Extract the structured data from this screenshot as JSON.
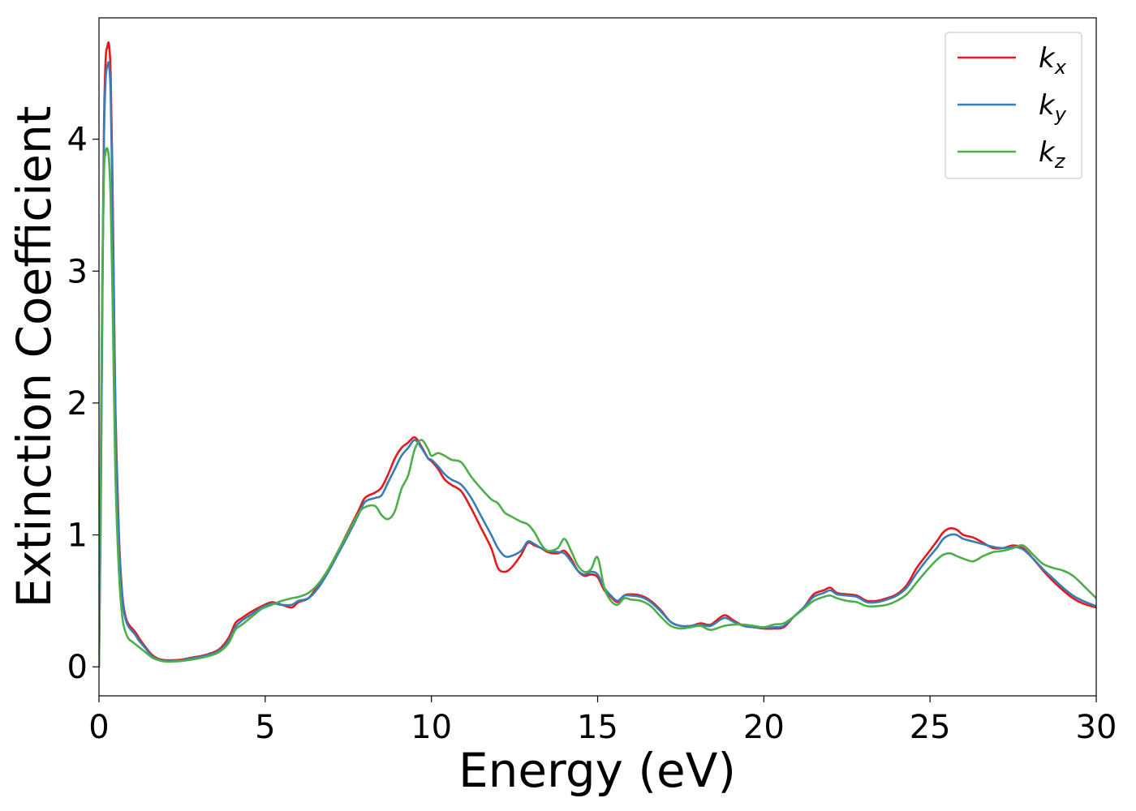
{
  "chart_data": {
    "type": "line",
    "title": "",
    "xlabel": "Energy (eV)",
    "ylabel": "Extinction Coefficient",
    "xlim": [
      0,
      30
    ],
    "ylim": [
      -0.22,
      4.92
    ],
    "xticks": [
      0,
      5,
      10,
      15,
      20,
      25,
      30
    ],
    "yticks": [
      0,
      1,
      2,
      3,
      4
    ],
    "grid": false,
    "legend_position": "top-right",
    "series": [
      {
        "name": "k",
        "subscript": "x",
        "color": "#e41a1c",
        "x": [
          0,
          0.05,
          0.1,
          0.15,
          0.2,
          0.25,
          0.3,
          0.35,
          0.4,
          0.45,
          0.5,
          0.6,
          0.7,
          0.8,
          0.9,
          1.0,
          1.1,
          1.2,
          1.4,
          1.6,
          1.8,
          2.0,
          2.2,
          2.5,
          2.8,
          3.2,
          3.6,
          3.9,
          4.1,
          4.3,
          4.6,
          4.9,
          5.2,
          5.5,
          5.8,
          6.0,
          6.3,
          6.6,
          6.9,
          7.2,
          7.5,
          7.8,
          8.0,
          8.3,
          8.5,
          8.7,
          8.9,
          9.1,
          9.3,
          9.5,
          9.7,
          9.9,
          10.0,
          10.2,
          10.4,
          10.6,
          10.9,
          11.2,
          11.5,
          11.8,
          12.0,
          12.2,
          12.4,
          12.7,
          12.9,
          13.1,
          13.3,
          13.5,
          13.8,
          14.0,
          14.2,
          14.4,
          14.6,
          14.8,
          15.0,
          15.2,
          15.4,
          15.6,
          15.8,
          16.0,
          16.3,
          16.6,
          16.9,
          17.2,
          17.5,
          17.8,
          18.1,
          18.4,
          18.8,
          19.1,
          19.4,
          19.7,
          20.0,
          20.3,
          20.6,
          20.9,
          21.2,
          21.5,
          21.8,
          22.0,
          22.2,
          22.5,
          22.8,
          23.1,
          23.4,
          23.7,
          24.0,
          24.3,
          24.6,
          24.9,
          25.2,
          25.4,
          25.6,
          25.8,
          26.0,
          26.3,
          26.6,
          26.9,
          27.2,
          27.5,
          27.8,
          28.1,
          28.4,
          28.7,
          29.0,
          29.3,
          29.6,
          30.0
        ],
        "y": [
          0.0,
          1.2,
          2.8,
          4.1,
          4.6,
          4.7,
          4.72,
          4.5,
          3.8,
          2.8,
          1.9,
          1.0,
          0.55,
          0.38,
          0.32,
          0.29,
          0.26,
          0.22,
          0.15,
          0.09,
          0.06,
          0.05,
          0.05,
          0.055,
          0.07,
          0.09,
          0.13,
          0.22,
          0.33,
          0.37,
          0.42,
          0.46,
          0.49,
          0.47,
          0.45,
          0.49,
          0.52,
          0.62,
          0.74,
          0.88,
          1.03,
          1.18,
          1.28,
          1.32,
          1.36,
          1.46,
          1.58,
          1.66,
          1.7,
          1.74,
          1.67,
          1.58,
          1.56,
          1.5,
          1.42,
          1.38,
          1.33,
          1.2,
          1.05,
          0.9,
          0.75,
          0.72,
          0.75,
          0.85,
          0.94,
          0.92,
          0.9,
          0.87,
          0.86,
          0.88,
          0.82,
          0.73,
          0.69,
          0.7,
          0.68,
          0.58,
          0.53,
          0.49,
          0.54,
          0.55,
          0.54,
          0.5,
          0.43,
          0.34,
          0.31,
          0.31,
          0.33,
          0.32,
          0.39,
          0.35,
          0.31,
          0.3,
          0.29,
          0.29,
          0.3,
          0.38,
          0.45,
          0.55,
          0.58,
          0.6,
          0.56,
          0.55,
          0.54,
          0.5,
          0.5,
          0.52,
          0.55,
          0.62,
          0.75,
          0.85,
          0.95,
          1.02,
          1.05,
          1.04,
          1.0,
          0.98,
          0.94,
          0.9,
          0.9,
          0.92,
          0.9,
          0.82,
          0.73,
          0.65,
          0.58,
          0.52,
          0.48,
          0.45
        ]
      },
      {
        "name": "k",
        "subscript": "y",
        "color": "#377eb8",
        "x": [
          0,
          0.05,
          0.1,
          0.15,
          0.2,
          0.25,
          0.3,
          0.35,
          0.4,
          0.45,
          0.5,
          0.6,
          0.7,
          0.8,
          0.9,
          1.0,
          1.1,
          1.2,
          1.4,
          1.6,
          1.8,
          2.0,
          2.2,
          2.5,
          2.8,
          3.2,
          3.6,
          3.9,
          4.1,
          4.3,
          4.6,
          4.9,
          5.2,
          5.5,
          5.8,
          6.0,
          6.3,
          6.6,
          6.9,
          7.2,
          7.5,
          7.8,
          8.0,
          8.3,
          8.5,
          8.7,
          8.9,
          9.1,
          9.3,
          9.5,
          9.7,
          9.9,
          10.0,
          10.2,
          10.4,
          10.6,
          10.9,
          11.2,
          11.5,
          11.8,
          12.0,
          12.2,
          12.4,
          12.7,
          12.9,
          13.1,
          13.3,
          13.5,
          13.8,
          14.0,
          14.2,
          14.4,
          14.6,
          14.8,
          15.0,
          15.2,
          15.4,
          15.6,
          15.8,
          16.0,
          16.3,
          16.6,
          16.9,
          17.2,
          17.5,
          17.8,
          18.1,
          18.4,
          18.8,
          19.1,
          19.4,
          19.7,
          20.0,
          20.3,
          20.6,
          20.9,
          21.2,
          21.5,
          21.8,
          22.0,
          22.2,
          22.5,
          22.8,
          23.1,
          23.4,
          23.7,
          24.0,
          24.3,
          24.6,
          24.9,
          25.2,
          25.4,
          25.6,
          25.8,
          26.0,
          26.3,
          26.6,
          26.9,
          27.2,
          27.5,
          27.8,
          28.1,
          28.4,
          28.7,
          29.0,
          29.3,
          29.6,
          30.0
        ],
        "y": [
          0.0,
          1.1,
          2.7,
          4.0,
          4.45,
          4.55,
          4.57,
          4.35,
          3.65,
          2.7,
          1.8,
          0.95,
          0.52,
          0.36,
          0.3,
          0.27,
          0.24,
          0.2,
          0.14,
          0.08,
          0.055,
          0.045,
          0.045,
          0.05,
          0.065,
          0.085,
          0.12,
          0.2,
          0.3,
          0.35,
          0.4,
          0.45,
          0.48,
          0.47,
          0.47,
          0.5,
          0.52,
          0.6,
          0.72,
          0.86,
          1.0,
          1.15,
          1.25,
          1.28,
          1.3,
          1.4,
          1.5,
          1.6,
          1.66,
          1.72,
          1.66,
          1.58,
          1.57,
          1.52,
          1.46,
          1.42,
          1.38,
          1.28,
          1.14,
          1.0,
          0.9,
          0.84,
          0.84,
          0.88,
          0.95,
          0.93,
          0.9,
          0.88,
          0.87,
          0.86,
          0.8,
          0.73,
          0.7,
          0.72,
          0.7,
          0.6,
          0.54,
          0.5,
          0.54,
          0.54,
          0.53,
          0.49,
          0.42,
          0.34,
          0.31,
          0.31,
          0.32,
          0.31,
          0.37,
          0.34,
          0.31,
          0.3,
          0.3,
          0.3,
          0.31,
          0.38,
          0.45,
          0.53,
          0.56,
          0.58,
          0.55,
          0.54,
          0.53,
          0.49,
          0.49,
          0.51,
          0.54,
          0.6,
          0.71,
          0.81,
          0.9,
          0.97,
          1.0,
          1.0,
          0.97,
          0.95,
          0.93,
          0.91,
          0.9,
          0.91,
          0.89,
          0.82,
          0.74,
          0.67,
          0.6,
          0.54,
          0.5,
          0.46
        ]
      },
      {
        "name": "k",
        "subscript": "z",
        "color": "#4daf4a",
        "x": [
          0,
          0.05,
          0.1,
          0.15,
          0.2,
          0.25,
          0.3,
          0.35,
          0.4,
          0.45,
          0.5,
          0.6,
          0.7,
          0.8,
          0.9,
          1.0,
          1.1,
          1.2,
          1.4,
          1.6,
          1.8,
          2.0,
          2.2,
          2.5,
          2.8,
          3.2,
          3.6,
          3.9,
          4.1,
          4.3,
          4.6,
          4.9,
          5.2,
          5.5,
          5.8,
          6.0,
          6.3,
          6.6,
          6.9,
          7.2,
          7.5,
          7.8,
          8.0,
          8.3,
          8.5,
          8.7,
          8.9,
          9.1,
          9.3,
          9.5,
          9.7,
          9.9,
          10.0,
          10.2,
          10.4,
          10.6,
          10.9,
          11.2,
          11.5,
          11.8,
          12.0,
          12.2,
          12.4,
          12.7,
          12.9,
          13.1,
          13.3,
          13.5,
          13.8,
          14.0,
          14.2,
          14.4,
          14.6,
          14.8,
          15.0,
          15.2,
          15.4,
          15.6,
          15.8,
          16.0,
          16.3,
          16.6,
          16.9,
          17.2,
          17.5,
          17.8,
          18.1,
          18.4,
          18.8,
          19.1,
          19.4,
          19.7,
          20.0,
          20.3,
          20.6,
          20.9,
          21.2,
          21.5,
          21.8,
          22.0,
          22.2,
          22.5,
          22.8,
          23.1,
          23.4,
          23.7,
          24.0,
          24.3,
          24.6,
          24.9,
          25.2,
          25.4,
          25.6,
          25.8,
          26.0,
          26.3,
          26.6,
          26.9,
          27.2,
          27.5,
          27.8,
          28.1,
          28.4,
          28.7,
          29.0,
          29.3,
          29.6,
          30.0
        ],
        "y": [
          0.0,
          1.5,
          3.0,
          3.75,
          3.9,
          3.93,
          3.85,
          3.55,
          2.9,
          2.1,
          1.4,
          0.72,
          0.38,
          0.26,
          0.21,
          0.19,
          0.17,
          0.15,
          0.11,
          0.07,
          0.05,
          0.04,
          0.04,
          0.045,
          0.055,
          0.075,
          0.11,
          0.18,
          0.28,
          0.32,
          0.38,
          0.44,
          0.47,
          0.5,
          0.52,
          0.53,
          0.56,
          0.63,
          0.74,
          0.88,
          1.02,
          1.16,
          1.21,
          1.22,
          1.15,
          1.12,
          1.18,
          1.35,
          1.45,
          1.65,
          1.72,
          1.65,
          1.6,
          1.62,
          1.6,
          1.57,
          1.55,
          1.44,
          1.35,
          1.27,
          1.24,
          1.17,
          1.14,
          1.1,
          1.08,
          1.02,
          0.93,
          0.88,
          0.9,
          0.97,
          0.88,
          0.77,
          0.72,
          0.74,
          0.83,
          0.6,
          0.5,
          0.47,
          0.52,
          0.51,
          0.5,
          0.46,
          0.38,
          0.31,
          0.29,
          0.3,
          0.31,
          0.28,
          0.31,
          0.32,
          0.32,
          0.31,
          0.3,
          0.32,
          0.33,
          0.38,
          0.44,
          0.5,
          0.53,
          0.54,
          0.52,
          0.5,
          0.49,
          0.46,
          0.46,
          0.47,
          0.5,
          0.55,
          0.64,
          0.73,
          0.81,
          0.85,
          0.86,
          0.84,
          0.82,
          0.8,
          0.84,
          0.87,
          0.88,
          0.9,
          0.92,
          0.85,
          0.78,
          0.75,
          0.73,
          0.69,
          0.62,
          0.52
        ]
      }
    ]
  }
}
